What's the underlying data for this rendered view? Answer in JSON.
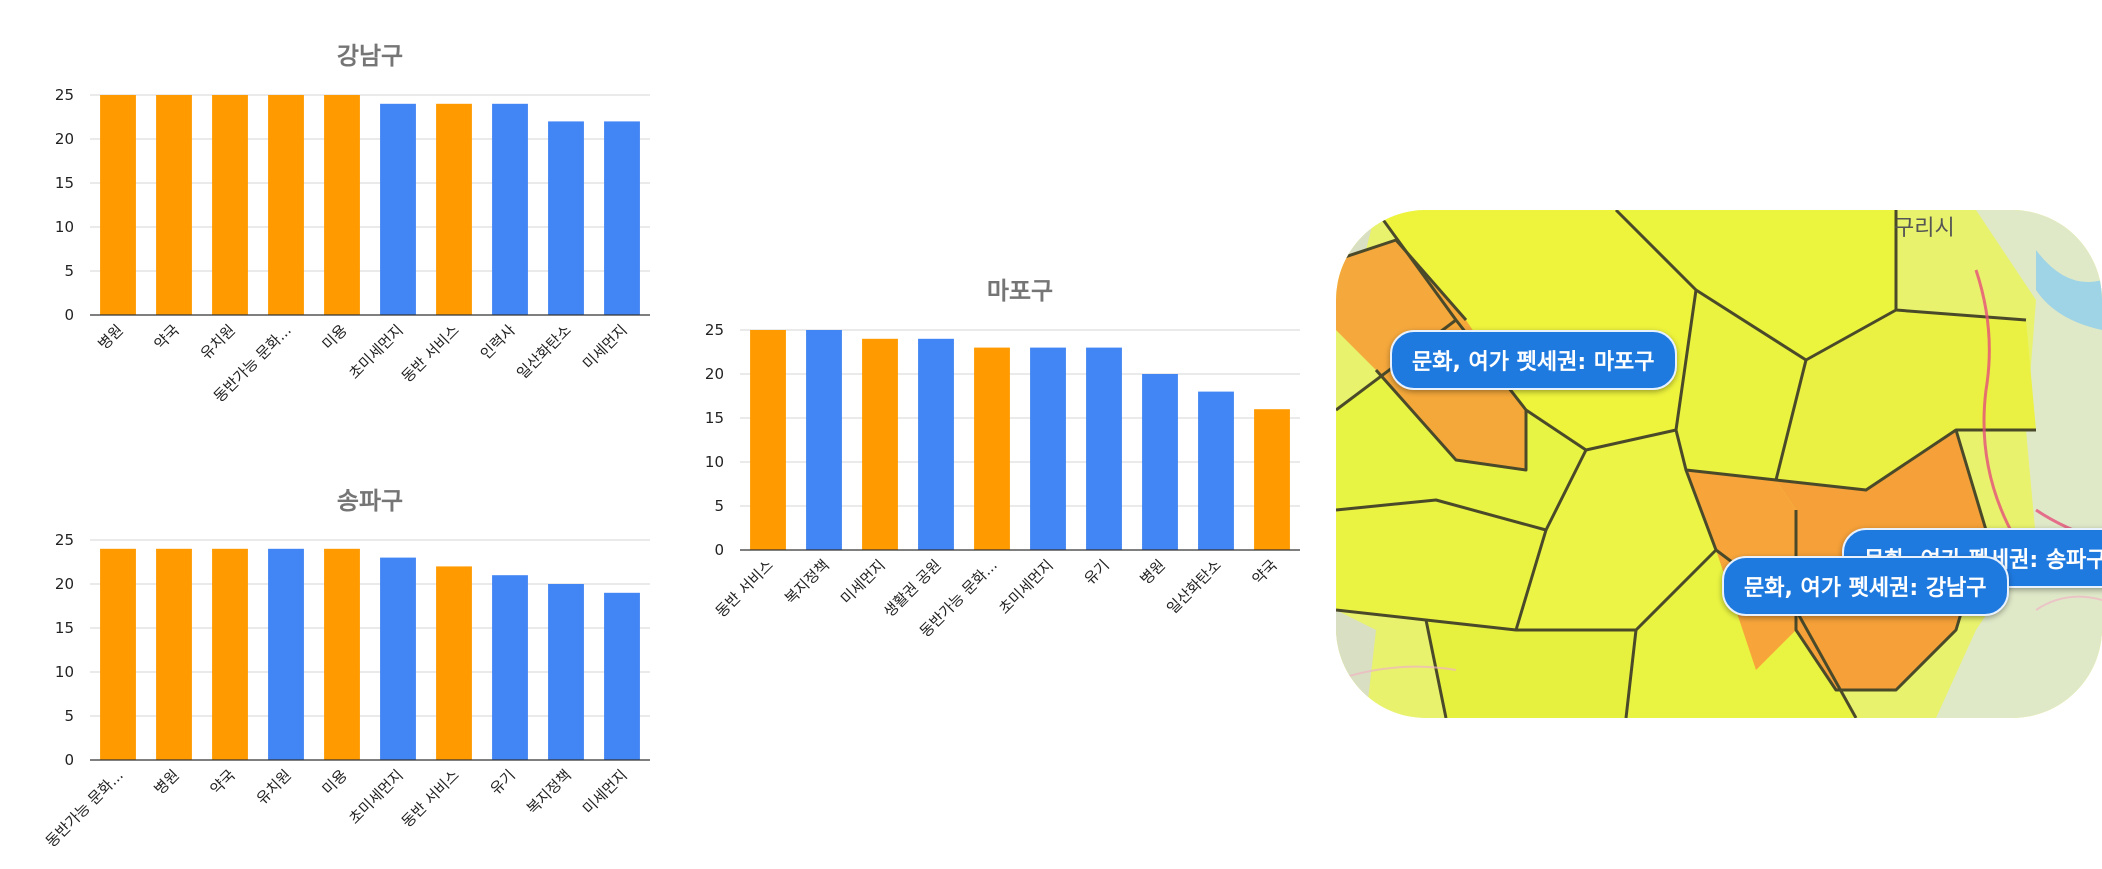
{
  "colors": {
    "orange": "#FF9A00",
    "blue": "#4285F4"
  },
  "chart_data": [
    {
      "type": "bar",
      "title": "강남구",
      "ylim": [
        0,
        25
      ],
      "yticks": [
        0,
        5,
        10,
        15,
        20,
        25
      ],
      "grid": true,
      "categories": [
        "병원",
        "약국",
        "유치원",
        "동반가능 문화...",
        "미용",
        "초미세먼지",
        "동반 서비스",
        "인력사",
        "일산화탄소",
        "미세먼지"
      ],
      "values": [
        25,
        25,
        25,
        25,
        25,
        24,
        24,
        24,
        22,
        22
      ],
      "bar_colors": [
        "orange",
        "orange",
        "orange",
        "orange",
        "orange",
        "blue",
        "orange",
        "blue",
        "blue",
        "blue"
      ]
    },
    {
      "type": "bar",
      "title": "송파구",
      "ylim": [
        0,
        25
      ],
      "yticks": [
        0,
        5,
        10,
        15,
        20,
        25
      ],
      "grid": true,
      "categories": [
        "동반가능 문화...",
        "병원",
        "약국",
        "유치원",
        "미용",
        "초미세먼지",
        "동반 서비스",
        "유기",
        "복지정책",
        "미세먼지"
      ],
      "values": [
        24,
        24,
        24,
        24,
        24,
        23,
        22,
        21,
        20,
        19
      ],
      "bar_colors": [
        "orange",
        "orange",
        "orange",
        "blue",
        "orange",
        "blue",
        "orange",
        "blue",
        "blue",
        "blue"
      ]
    },
    {
      "type": "bar",
      "title": "마포구",
      "ylim": [
        0,
        25
      ],
      "yticks": [
        0,
        5,
        10,
        15,
        20,
        25
      ],
      "grid": true,
      "categories": [
        "동반 서비스",
        "복지정책",
        "미세먼지",
        "생활권 공원",
        "동반가능 문화...",
        "초미세먼지",
        "유기",
        "병원",
        "일산화탄소",
        "약국"
      ],
      "values": [
        25,
        25,
        24,
        24,
        23,
        23,
        23,
        20,
        18,
        16
      ],
      "bar_colors": [
        "orange",
        "blue",
        "orange",
        "blue",
        "orange",
        "blue",
        "blue",
        "blue",
        "blue",
        "orange"
      ]
    }
  ],
  "map": {
    "labels": {
      "mapo": "문화, 여가 펫세권: 마포구",
      "songpa": "문화, 여가 펫세권: 송파구",
      "gangnam": "문화, 여가 펫세권: 강남구"
    },
    "places": {
      "guri": "구리시"
    }
  }
}
